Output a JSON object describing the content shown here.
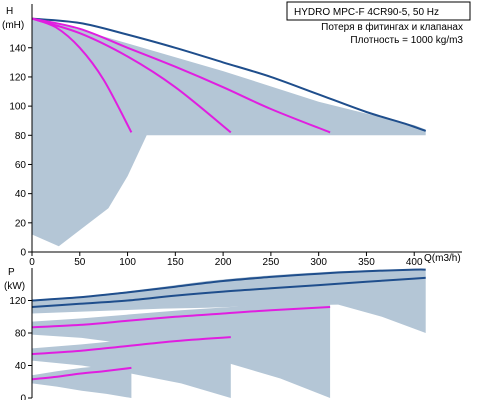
{
  "colors": {
    "area_fill": "#b4c6d6",
    "max_curve": "#1f4e8c",
    "partial_curves": "#e01ee0",
    "axes": "#000000"
  },
  "info_box": {
    "title": "HYDRO MPC-F 4CR90-5, 50 Hz",
    "line1": "Потеря в фитингах и клапанах",
    "line2": "Плотность = 1000 kg/m3"
  },
  "chart_data": [
    {
      "type": "line",
      "panel": "head",
      "ylabel_letter": "H",
      "ylabel_unit": "(mH)",
      "xlabel": "Q(m3/h)",
      "xlim": [
        0,
        450
      ],
      "ylim": [
        0,
        170
      ],
      "xticks": [
        0,
        50,
        100,
        150,
        200,
        250,
        300,
        350,
        400
      ],
      "yticks": [
        0,
        20,
        40,
        60,
        80,
        100,
        120,
        140
      ],
      "region": {
        "description_points": [
          [
            0,
            160
          ],
          [
            20,
            158
          ],
          [
            100,
            143
          ],
          [
            200,
            124
          ],
          [
            300,
            103
          ],
          [
            380,
            90
          ],
          [
            400,
            87
          ],
          [
            412,
            84
          ],
          [
            412,
            80
          ],
          [
            120,
            80
          ],
          [
            100,
            52
          ],
          [
            80,
            30
          ],
          [
            50,
            15
          ],
          [
            28,
            4
          ],
          [
            0,
            12
          ]
        ]
      },
      "series": [
        {
          "role": "max",
          "x": [
            0,
            50,
            100,
            150,
            200,
            250,
            300,
            350,
            390,
            412
          ],
          "y": [
            160,
            157,
            149,
            140,
            130,
            120,
            108,
            96,
            88,
            83
          ]
        },
        {
          "role": "pumps-3",
          "x": [
            0,
            50,
            100,
            150,
            200,
            250,
            312
          ],
          "y": [
            160,
            153,
            140,
            127,
            113,
            98,
            82
          ]
        },
        {
          "role": "pumps-2",
          "x": [
            0,
            50,
            100,
            150,
            208
          ],
          "y": [
            160,
            150,
            134,
            113,
            82
          ]
        },
        {
          "role": "pumps-1",
          "x": [
            0,
            25,
            50,
            75,
            104
          ],
          "y": [
            160,
            154,
            140,
            118,
            82
          ]
        }
      ]
    },
    {
      "type": "line",
      "panel": "power",
      "ylabel_letter": "P",
      "ylabel_unit": "(kW)",
      "xlim": [
        0,
        450
      ],
      "ylim": [
        0,
        160
      ],
      "yticks": [
        0,
        40,
        80,
        120
      ],
      "series": [
        {
          "role": "upper",
          "x": [
            0,
            50,
            100,
            150,
            200,
            250,
            300,
            350,
            400,
            412
          ],
          "y": [
            120,
            124,
            130,
            137,
            144,
            149,
            153,
            156,
            158,
            158
          ]
        },
        {
          "role": "lower",
          "x": [
            0,
            50,
            100,
            150,
            200,
            250,
            300,
            350,
            400,
            412
          ],
          "y": [
            112,
            116,
            120,
            126,
            131,
            135,
            139,
            143,
            147,
            148
          ]
        },
        {
          "role": "pumps-3",
          "x": [
            0,
            50,
            100,
            150,
            200,
            250,
            312
          ],
          "y": [
            87,
            90,
            95,
            100,
            104,
            108,
            112
          ]
        },
        {
          "role": "pumps-2",
          "x": [
            0,
            50,
            100,
            150,
            208
          ],
          "y": [
            54,
            58,
            64,
            70,
            75
          ]
        },
        {
          "role": "pumps-1",
          "x": [
            0,
            25,
            50,
            75,
            104
          ],
          "y": [
            23,
            26,
            30,
            33,
            37
          ]
        }
      ],
      "bands": [
        {
          "x_start": 0,
          "x_end": 104,
          "top": [
            28,
            33,
            37,
            40,
            43
          ],
          "bottom": [
            18,
            14,
            9,
            5,
            0
          ]
        },
        {
          "x_start": 0,
          "x_end": 208,
          "top": [
            61,
            66,
            72,
            77,
            82
          ],
          "bottom": [
            46,
            40,
            30,
            18,
            0
          ]
        },
        {
          "x_start": 0,
          "x_end": 312,
          "top": [
            94,
            98,
            103,
            108,
            112,
            116,
            120
          ],
          "bottom": [
            78,
            74,
            66,
            56,
            42,
            24,
            0
          ]
        },
        {
          "x_start": 0,
          "x_end": 412,
          "top": [
            120,
            124,
            130,
            137,
            144,
            149,
            153,
            156,
            158,
            158
          ],
          "bottom": [
            104,
            106,
            108,
            110,
            111,
            113,
            114,
            115,
            100,
            80
          ]
        }
      ]
    }
  ]
}
